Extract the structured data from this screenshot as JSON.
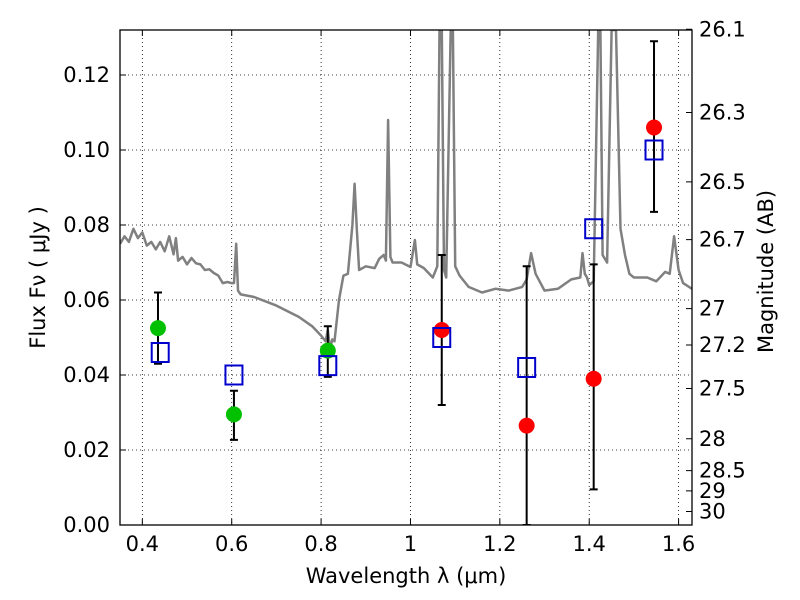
{
  "chart_data": {
    "type": "scatter",
    "title": "",
    "xlabel": "Wavelength  λ (μm)",
    "ylabel": "Flux  Fν ( μJy )",
    "ylabel_right": "Magnitude (AB)",
    "xlim": [
      0.35,
      1.63
    ],
    "ylim": [
      0.0,
      0.132
    ],
    "grid": true,
    "x_ticks": [
      0.4,
      0.6,
      0.8,
      1.0,
      1.2,
      1.4,
      1.6
    ],
    "x_tick_labels": [
      "0.4",
      "0.6",
      "0.8",
      "1",
      "1.2",
      "1.4",
      "1.6"
    ],
    "y_ticks": [
      0.0,
      0.02,
      0.04,
      0.06,
      0.08,
      0.1,
      0.12
    ],
    "y_tick_labels": [
      "0.00",
      "0.02",
      "0.04",
      "0.06",
      "0.08",
      "0.10",
      "0.12"
    ],
    "right_axis_ticks": [
      {
        "label": "26.1",
        "flux": 0.1322
      },
      {
        "label": "26.3",
        "flux": 0.11
      },
      {
        "label": "26.5",
        "flux": 0.0915
      },
      {
        "label": "26.7",
        "flux": 0.0761
      },
      {
        "label": "27",
        "flux": 0.0577
      },
      {
        "label": "27.2",
        "flux": 0.048
      },
      {
        "label": "27.5",
        "flux": 0.0364
      },
      {
        "label": "28",
        "flux": 0.023
      },
      {
        "label": "28.5",
        "flux": 0.0145
      },
      {
        "label": "29",
        "flux": 0.0091
      },
      {
        "label": "30",
        "flux": 0.0036
      }
    ],
    "series": [
      {
        "type": "line",
        "color": "#808080",
        "points": [
          [
            0.35,
            0.075
          ],
          [
            0.36,
            0.077
          ],
          [
            0.37,
            0.0755
          ],
          [
            0.38,
            0.079
          ],
          [
            0.39,
            0.0765
          ],
          [
            0.4,
            0.078
          ],
          [
            0.41,
            0.0745
          ],
          [
            0.42,
            0.0755
          ],
          [
            0.43,
            0.0735
          ],
          [
            0.44,
            0.0755
          ],
          [
            0.45,
            0.073
          ],
          [
            0.46,
            0.077
          ],
          [
            0.47,
            0.0722
          ],
          [
            0.475,
            0.0765
          ],
          [
            0.48,
            0.0705
          ],
          [
            0.49,
            0.0715
          ],
          [
            0.5,
            0.0695
          ],
          [
            0.51,
            0.0712
          ],
          [
            0.52,
            0.0698
          ],
          [
            0.53,
            0.0695
          ],
          [
            0.54,
            0.068
          ],
          [
            0.55,
            0.0682
          ],
          [
            0.56,
            0.0672
          ],
          [
            0.57,
            0.0665
          ],
          [
            0.58,
            0.0645
          ],
          [
            0.59,
            0.0648
          ],
          [
            0.6,
            0.0645
          ],
          [
            0.605,
            0.0645
          ],
          [
            0.61,
            0.075
          ],
          [
            0.614,
            0.0625
          ],
          [
            0.62,
            0.0615
          ],
          [
            0.65,
            0.0608
          ],
          [
            0.7,
            0.0585
          ],
          [
            0.75,
            0.0555
          ],
          [
            0.78,
            0.053
          ],
          [
            0.8,
            0.0505
          ],
          [
            0.81,
            0.049
          ],
          [
            0.815,
            0.052
          ],
          [
            0.82,
            0.047
          ],
          [
            0.825,
            0.0495
          ],
          [
            0.83,
            0.049
          ],
          [
            0.84,
            0.06
          ],
          [
            0.85,
            0.0665
          ],
          [
            0.86,
            0.067
          ],
          [
            0.87,
            0.08
          ],
          [
            0.875,
            0.091
          ],
          [
            0.88,
            0.079
          ],
          [
            0.885,
            0.068
          ],
          [
            0.9,
            0.069
          ],
          [
            0.92,
            0.0685
          ],
          [
            0.93,
            0.071
          ],
          [
            0.94,
            0.072
          ],
          [
            0.945,
            0.0705
          ],
          [
            0.95,
            0.108
          ],
          [
            0.955,
            0.0715
          ],
          [
            0.96,
            0.07
          ],
          [
            0.98,
            0.07
          ],
          [
            1.0,
            0.0688
          ],
          [
            1.01,
            0.076
          ],
          [
            1.015,
            0.0695
          ],
          [
            1.03,
            0.0685
          ],
          [
            1.05,
            0.066
          ],
          [
            1.06,
            0.069
          ],
          [
            1.065,
            0.132
          ],
          [
            1.07,
            0.132
          ],
          [
            1.075,
            0.068
          ],
          [
            1.08,
            0.066
          ],
          [
            1.09,
            0.132
          ],
          [
            1.095,
            0.132
          ],
          [
            1.1,
            0.069
          ],
          [
            1.11,
            0.0665
          ],
          [
            1.13,
            0.0635
          ],
          [
            1.16,
            0.062
          ],
          [
            1.19,
            0.063
          ],
          [
            1.22,
            0.0625
          ],
          [
            1.25,
            0.0635
          ],
          [
            1.26,
            0.0655
          ],
          [
            1.27,
            0.0725
          ],
          [
            1.28,
            0.067
          ],
          [
            1.3,
            0.0625
          ],
          [
            1.33,
            0.063
          ],
          [
            1.36,
            0.0655
          ],
          [
            1.38,
            0.066
          ],
          [
            1.385,
            0.0725
          ],
          [
            1.39,
            0.067
          ],
          [
            1.395,
            0.066
          ],
          [
            1.4,
            0.064
          ],
          [
            1.41,
            0.065
          ],
          [
            1.42,
            0.132
          ],
          [
            1.425,
            0.132
          ],
          [
            1.43,
            0.072
          ],
          [
            1.44,
            0.07
          ],
          [
            1.45,
            0.132
          ],
          [
            1.46,
            0.132
          ],
          [
            1.47,
            0.079
          ],
          [
            1.48,
            0.072
          ],
          [
            1.49,
            0.067
          ],
          [
            1.5,
            0.066
          ],
          [
            1.53,
            0.066
          ],
          [
            1.55,
            0.065
          ],
          [
            1.57,
            0.0675
          ],
          [
            1.58,
            0.067
          ],
          [
            1.59,
            0.077
          ],
          [
            1.6,
            0.068
          ],
          [
            1.61,
            0.0645
          ],
          [
            1.63,
            0.063
          ]
        ]
      },
      {
        "type": "scatter",
        "marker": "circle",
        "color": "#00c000",
        "x": [
          0.435,
          0.605,
          0.815
        ],
        "y": [
          0.0525,
          0.0295,
          0.0465
        ],
        "err_low": [
          0.0095,
          0.0068,
          0.007
        ],
        "err_high": [
          0.0095,
          0.0063,
          0.0065
        ]
      },
      {
        "type": "scatter",
        "marker": "circle",
        "color": "#ff0000",
        "x": [
          1.07,
          1.26,
          1.41,
          1.545
        ],
        "y": [
          0.052,
          0.0265,
          0.039,
          0.106
        ],
        "err_low": [
          0.02,
          0.0265,
          0.0295,
          0.0225
        ],
        "err_high": [
          0.02,
          0.0425,
          0.0305,
          0.023
        ]
      },
      {
        "type": "scatter",
        "marker": "square",
        "color": "#0000cc",
        "x": [
          0.44,
          0.605,
          0.815,
          1.07,
          1.26,
          1.41,
          1.545
        ],
        "y": [
          0.046,
          0.04,
          0.0425,
          0.05,
          0.042,
          0.079,
          0.1
        ]
      }
    ]
  }
}
